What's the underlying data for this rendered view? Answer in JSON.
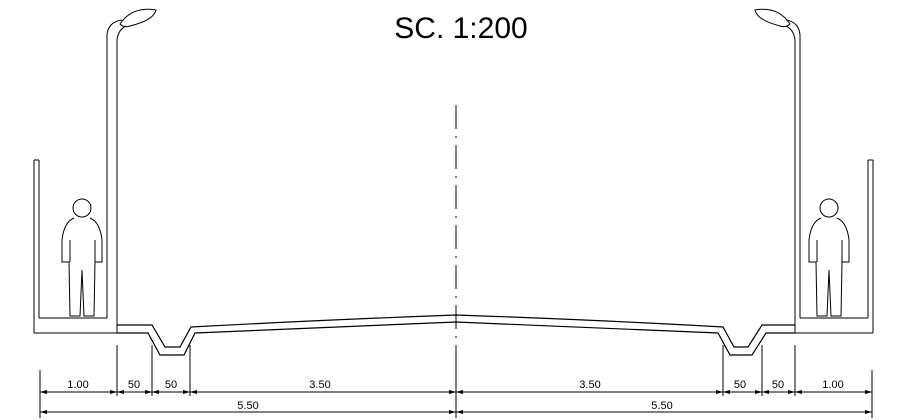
{
  "title": "SC. 1:200",
  "dimensions": {
    "row1": [
      "1.00",
      "50",
      "50",
      "3.50",
      "3.50",
      "50",
      "50",
      "1.00"
    ],
    "row2": [
      "5.50",
      "5.50"
    ]
  }
}
